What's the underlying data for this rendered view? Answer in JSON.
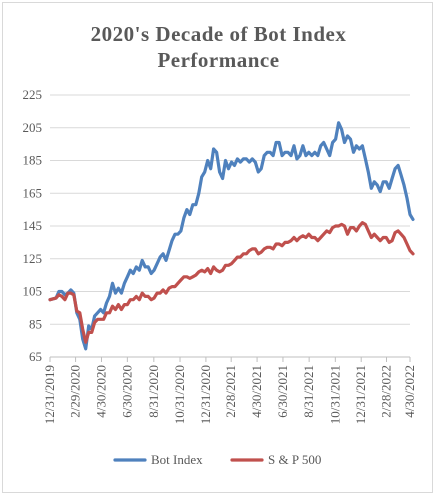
{
  "chart_data": {
    "type": "line",
    "title_lines": [
      "2020's Decade of Bot Index",
      "Performance"
    ],
    "xlabel": "",
    "ylabel": "",
    "ylim": [
      65,
      225
    ],
    "yticks": [
      65,
      85,
      105,
      125,
      145,
      165,
      185,
      205,
      225
    ],
    "xlim": [
      0,
      121
    ],
    "x_tick_labels": [
      "12/31/2019",
      "2/29/2020",
      "4/30/2020",
      "6/30/2020",
      "8/31/2020",
      "10/31/2020",
      "12/31/2020",
      "2/28/2021",
      "4/30/2021",
      "6/30/2021",
      "8/31/2021",
      "10/31/2021",
      "12/31/2021",
      "2/28/2022",
      "4/30/2022"
    ],
    "x_tick_weeks": [
      0,
      8.6,
      17.3,
      26,
      34.9,
      43.7,
      52.4,
      60.9,
      69.6,
      78.3,
      87.1,
      95.9,
      104.6,
      113.1,
      121
    ],
    "grid": "horizontal",
    "legend_position": "bottom",
    "series": [
      {
        "name": "Bot Index",
        "color": "#4f81bd",
        "points": [
          [
            0,
            100
          ],
          [
            2,
            101
          ],
          [
            3,
            105
          ],
          [
            4,
            105
          ],
          [
            5,
            103
          ],
          [
            6,
            104
          ],
          [
            7,
            106
          ],
          [
            8,
            104
          ],
          [
            9,
            92
          ],
          [
            10,
            88
          ],
          [
            11,
            76
          ],
          [
            12,
            70
          ],
          [
            13,
            84
          ],
          [
            14,
            82
          ],
          [
            15,
            90
          ],
          [
            16,
            92
          ],
          [
            17,
            94
          ],
          [
            18,
            92
          ],
          [
            19,
            98
          ],
          [
            20,
            102
          ],
          [
            21,
            110
          ],
          [
            22,
            104
          ],
          [
            23,
            107
          ],
          [
            24,
            104
          ],
          [
            25,
            110
          ],
          [
            26,
            114
          ],
          [
            27,
            118
          ],
          [
            28,
            116
          ],
          [
            29,
            120
          ],
          [
            30,
            118
          ],
          [
            31,
            124
          ],
          [
            32,
            120
          ],
          [
            33,
            120
          ],
          [
            34,
            116
          ],
          [
            35,
            118
          ],
          [
            36,
            122
          ],
          [
            37,
            126
          ],
          [
            38,
            128
          ],
          [
            39,
            124
          ],
          [
            40,
            130
          ],
          [
            41,
            136
          ],
          [
            42,
            140
          ],
          [
            43,
            140
          ],
          [
            44,
            142
          ],
          [
            45,
            150
          ],
          [
            46,
            155
          ],
          [
            47,
            152
          ],
          [
            48,
            158
          ],
          [
            49,
            158
          ],
          [
            50,
            165
          ],
          [
            51,
            175
          ],
          [
            52,
            178
          ],
          [
            53,
            185
          ],
          [
            54,
            180
          ],
          [
            55,
            192
          ],
          [
            56,
            190
          ],
          [
            57,
            178
          ],
          [
            58,
            174
          ],
          [
            59,
            185
          ],
          [
            60,
            180
          ],
          [
            61,
            184
          ],
          [
            62,
            182
          ],
          [
            63,
            186
          ],
          [
            64,
            184
          ],
          [
            65,
            186
          ],
          [
            66,
            186
          ],
          [
            67,
            184
          ],
          [
            68,
            186
          ],
          [
            69,
            184
          ],
          [
            70,
            178
          ],
          [
            71,
            180
          ],
          [
            72,
            188
          ],
          [
            73,
            190
          ],
          [
            74,
            190
          ],
          [
            75,
            188
          ],
          [
            76,
            196
          ],
          [
            77,
            196
          ],
          [
            78,
            188
          ],
          [
            79,
            190
          ],
          [
            80,
            190
          ],
          [
            81,
            188
          ],
          [
            82,
            194
          ],
          [
            83,
            186
          ],
          [
            84,
            188
          ],
          [
            85,
            194
          ],
          [
            86,
            188
          ],
          [
            87,
            190
          ],
          [
            88,
            188
          ],
          [
            89,
            190
          ],
          [
            90,
            188
          ],
          [
            91,
            194
          ],
          [
            92,
            196
          ],
          [
            93,
            192
          ],
          [
            94,
            188
          ],
          [
            95,
            196
          ],
          [
            96,
            198
          ],
          [
            97,
            208
          ],
          [
            98,
            204
          ],
          [
            99,
            196
          ],
          [
            100,
            200
          ],
          [
            101,
            198
          ],
          [
            102,
            190
          ],
          [
            103,
            194
          ],
          [
            104,
            192
          ],
          [
            105,
            194
          ],
          [
            106,
            186
          ],
          [
            107,
            178
          ],
          [
            108,
            168
          ],
          [
            109,
            172
          ],
          [
            110,
            170
          ],
          [
            111,
            166
          ],
          [
            112,
            172
          ],
          [
            113,
            172
          ],
          [
            114,
            168
          ],
          [
            115,
            174
          ],
          [
            116,
            180
          ],
          [
            117,
            182
          ],
          [
            118,
            176
          ],
          [
            119,
            170
          ],
          [
            120,
            162
          ],
          [
            121,
            152
          ],
          [
            122,
            149
          ]
        ]
      },
      {
        "name": "S & P 500",
        "color": "#c0504d",
        "points": [
          [
            0,
            100
          ],
          [
            2,
            101
          ],
          [
            3,
            103
          ],
          [
            4,
            102
          ],
          [
            5,
            100
          ],
          [
            6,
            104
          ],
          [
            7,
            104
          ],
          [
            8,
            103
          ],
          [
            9,
            93
          ],
          [
            10,
            92
          ],
          [
            11,
            82
          ],
          [
            12,
            74
          ],
          [
            13,
            80
          ],
          [
            14,
            80
          ],
          [
            15,
            86
          ],
          [
            16,
            88
          ],
          [
            17,
            88
          ],
          [
            18,
            88
          ],
          [
            19,
            92
          ],
          [
            20,
            92
          ],
          [
            21,
            96
          ],
          [
            22,
            94
          ],
          [
            23,
            97
          ],
          [
            24,
            94
          ],
          [
            25,
            97
          ],
          [
            26,
            97
          ],
          [
            27,
            100
          ],
          [
            28,
            100
          ],
          [
            29,
            102
          ],
          [
            30,
            100
          ],
          [
            31,
            104
          ],
          [
            32,
            102
          ],
          [
            33,
            102
          ],
          [
            34,
            100
          ],
          [
            35,
            101
          ],
          [
            36,
            104
          ],
          [
            37,
            104
          ],
          [
            38,
            106
          ],
          [
            39,
            104
          ],
          [
            40,
            107
          ],
          [
            41,
            108
          ],
          [
            42,
            108
          ],
          [
            43,
            110
          ],
          [
            44,
            112
          ],
          [
            45,
            114
          ],
          [
            46,
            114
          ],
          [
            47,
            113
          ],
          [
            48,
            114
          ],
          [
            49,
            115
          ],
          [
            50,
            117
          ],
          [
            51,
            118
          ],
          [
            52,
            117
          ],
          [
            53,
            119
          ],
          [
            54,
            116
          ],
          [
            55,
            120
          ],
          [
            56,
            118
          ],
          [
            57,
            117
          ],
          [
            58,
            118
          ],
          [
            59,
            121
          ],
          [
            60,
            121
          ],
          [
            61,
            122
          ],
          [
            62,
            124
          ],
          [
            63,
            126
          ],
          [
            64,
            126
          ],
          [
            65,
            128
          ],
          [
            66,
            128
          ],
          [
            67,
            130
          ],
          [
            68,
            131
          ],
          [
            69,
            131
          ],
          [
            70,
            128
          ],
          [
            71,
            129
          ],
          [
            72,
            131
          ],
          [
            73,
            132
          ],
          [
            74,
            132
          ],
          [
            75,
            131
          ],
          [
            76,
            134
          ],
          [
            77,
            134
          ],
          [
            78,
            133
          ],
          [
            79,
            135
          ],
          [
            80,
            135
          ],
          [
            81,
            136
          ],
          [
            82,
            138
          ],
          [
            83,
            136
          ],
          [
            84,
            138
          ],
          [
            85,
            139
          ],
          [
            86,
            138
          ],
          [
            87,
            140
          ],
          [
            88,
            138
          ],
          [
            89,
            138
          ],
          [
            90,
            136
          ],
          [
            91,
            138
          ],
          [
            92,
            140
          ],
          [
            93,
            142
          ],
          [
            94,
            141
          ],
          [
            95,
            144
          ],
          [
            96,
            145
          ],
          [
            97,
            145
          ],
          [
            98,
            146
          ],
          [
            99,
            145
          ],
          [
            100,
            140
          ],
          [
            101,
            144
          ],
          [
            102,
            144
          ],
          [
            103,
            142
          ],
          [
            104,
            145
          ],
          [
            105,
            147
          ],
          [
            106,
            146
          ],
          [
            107,
            142
          ],
          [
            108,
            138
          ],
          [
            109,
            140
          ],
          [
            110,
            138
          ],
          [
            111,
            136
          ],
          [
            112,
            138
          ],
          [
            113,
            138
          ],
          [
            114,
            135
          ],
          [
            115,
            136
          ],
          [
            116,
            141
          ],
          [
            117,
            142
          ],
          [
            118,
            140
          ],
          [
            119,
            138
          ],
          [
            120,
            134
          ],
          [
            121,
            130
          ],
          [
            122,
            128
          ]
        ]
      }
    ]
  }
}
